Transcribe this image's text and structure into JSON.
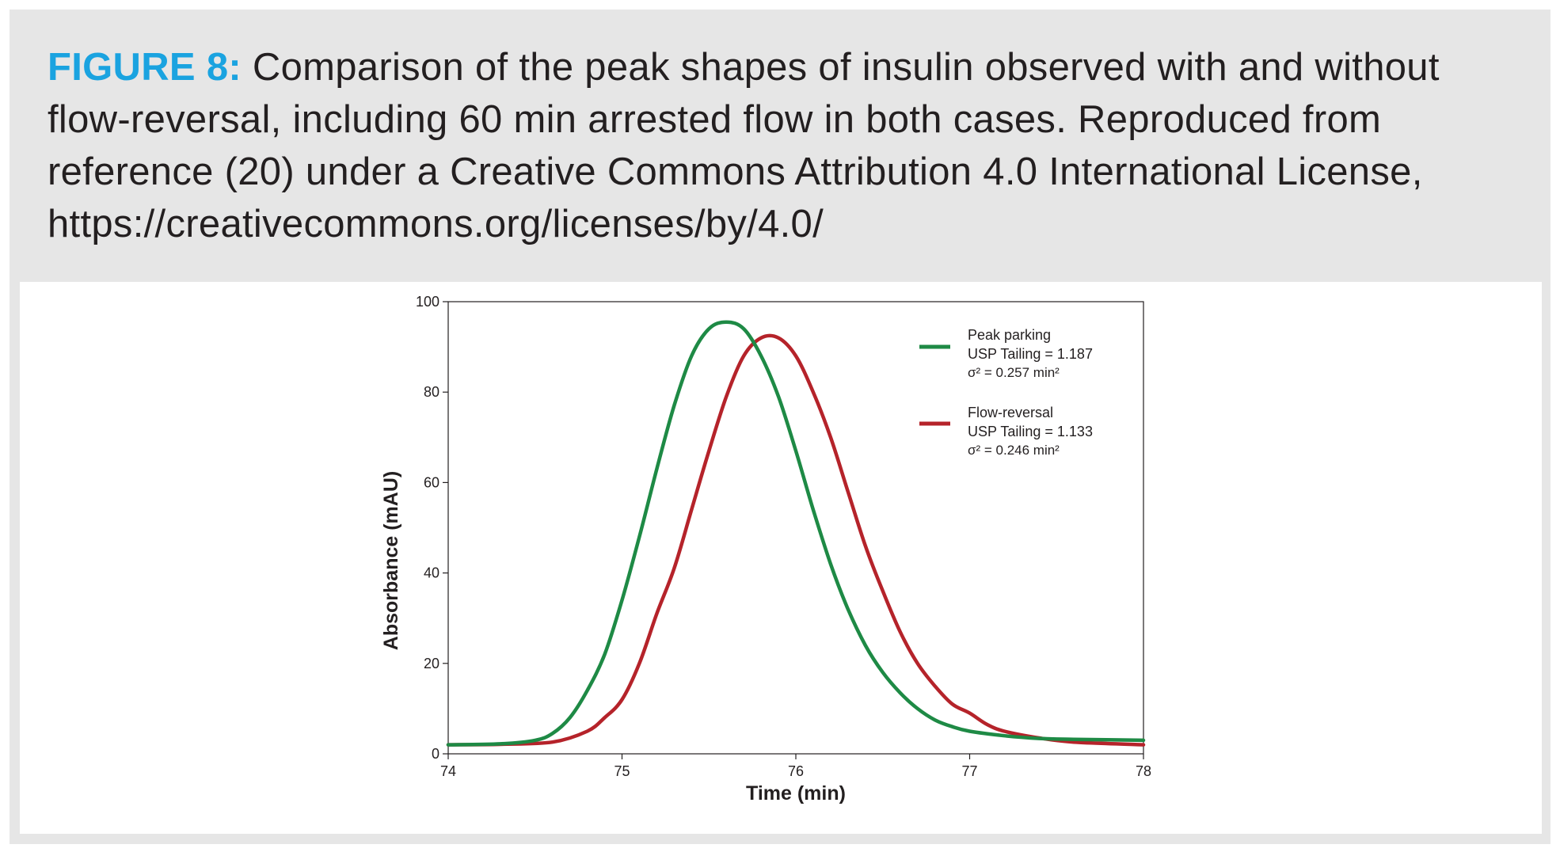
{
  "caption": {
    "label": "FIGURE 8:",
    "text": " Comparison of the peak shapes of insulin observed with and without flow-reversal, including 60 min arrested flow in both cases. Reproduced from reference (20) under a Creative Commons Attribution 4.0 International License, https://creativecommons.org/licenses/by/4.0/"
  },
  "colors": {
    "caption_label": "#1aa3e0",
    "peak_parking": "#1e8a45",
    "flow_reversal": "#b5232a"
  },
  "chart_data": {
    "type": "line",
    "title": "",
    "xlabel": "Time (min)",
    "ylabel": "Absorbance (mAU)",
    "xlim": [
      74,
      78
    ],
    "ylim": [
      0,
      100
    ],
    "xticks": [
      74,
      75,
      76,
      77,
      78
    ],
    "yticks": [
      0,
      20,
      40,
      60,
      80,
      100
    ],
    "legend_position": "top-right",
    "series": [
      {
        "name": "Peak parking",
        "stats": [
          "USP Tailing = 1.187",
          "σ² = 0.257 min²"
        ],
        "color": "#1e8a45",
        "x": [
          74.0,
          74.3,
          74.5,
          74.6,
          74.7,
          74.8,
          74.9,
          75.0,
          75.1,
          75.2,
          75.3,
          75.4,
          75.5,
          75.6,
          75.7,
          75.8,
          75.9,
          76.0,
          76.1,
          76.2,
          76.3,
          76.4,
          76.5,
          76.6,
          76.7,
          76.8,
          76.9,
          77.0,
          77.2,
          77.4,
          77.6,
          78.0
        ],
        "y": [
          2.0,
          2.2,
          3.0,
          4.5,
          8.0,
          14.0,
          22.0,
          34.0,
          48.0,
          63.0,
          77.0,
          88.0,
          94.0,
          95.5,
          94.0,
          88.0,
          79.0,
          67.0,
          54.0,
          42.0,
          32.0,
          24.0,
          18.0,
          13.5,
          10.0,
          7.5,
          6.0,
          5.0,
          4.0,
          3.4,
          3.2,
          3.0
        ]
      },
      {
        "name": "Flow-reversal",
        "stats": [
          "USP Tailing = 1.133",
          "σ² = 0.246 min²"
        ],
        "color": "#b5232a",
        "x": [
          74.0,
          74.3,
          74.6,
          74.8,
          74.9,
          75.0,
          75.1,
          75.2,
          75.3,
          75.4,
          75.5,
          75.6,
          75.7,
          75.8,
          75.9,
          76.0,
          76.1,
          76.2,
          76.3,
          76.4,
          76.5,
          76.6,
          76.7,
          76.8,
          76.9,
          77.0,
          77.1,
          77.2,
          77.4,
          77.6,
          78.0
        ],
        "y": [
          2.0,
          2.1,
          2.6,
          5.0,
          8.0,
          12.0,
          20.0,
          31.0,
          41.0,
          54.0,
          67.0,
          79.0,
          88.0,
          92.0,
          92.0,
          88.0,
          80.0,
          70.0,
          58.0,
          46.0,
          36.0,
          27.0,
          20.0,
          15.0,
          11.0,
          9.0,
          6.5,
          5.0,
          3.5,
          2.6,
          2.0
        ]
      }
    ]
  }
}
